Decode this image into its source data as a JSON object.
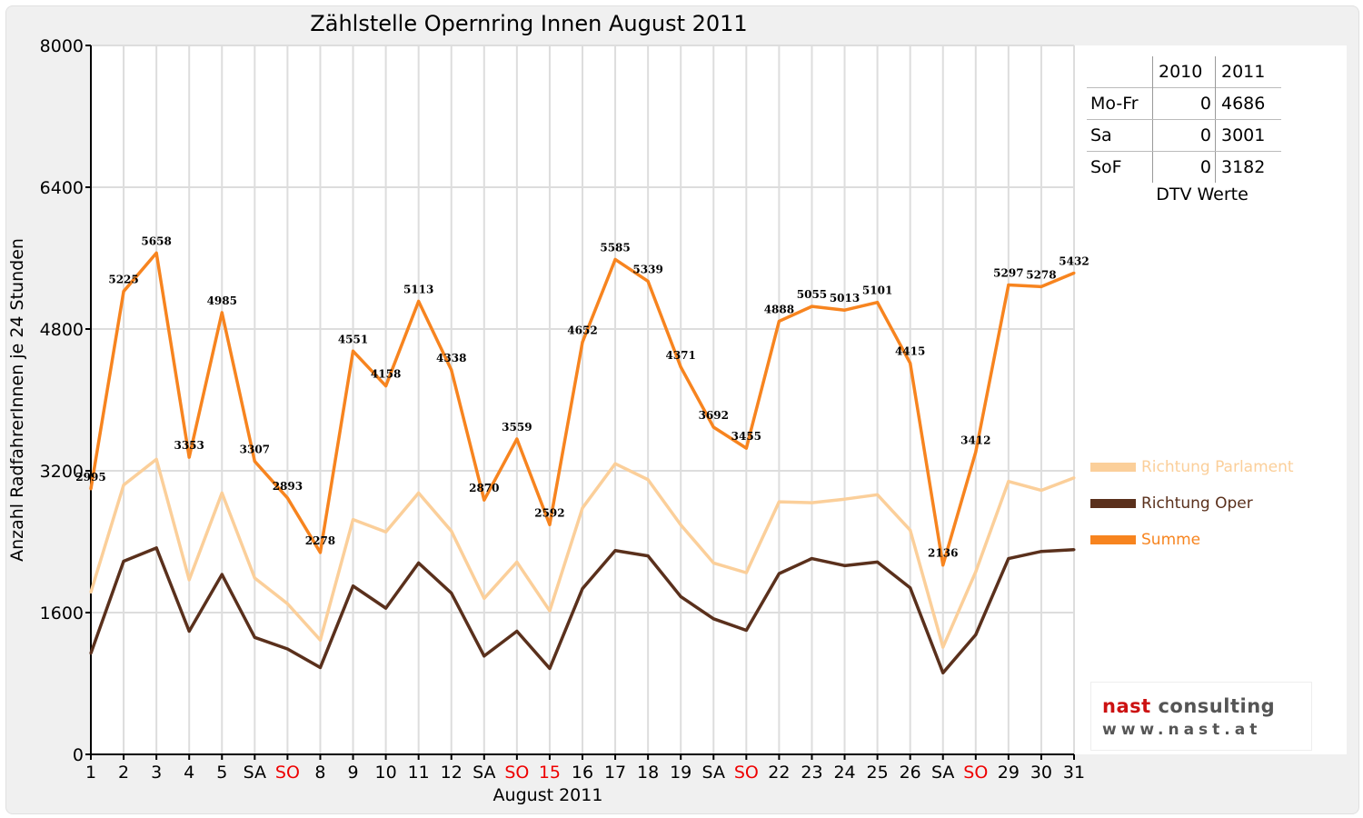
{
  "chart_data": {
    "type": "line",
    "title": "Zählstelle Opernring Innen August 2011",
    "xlabel": "August 2011",
    "ylabel": "Anzahl RadfahrerInnen je 24 Stunden",
    "ylim": [
      0,
      8000
    ],
    "yticks": [
      0,
      1600,
      3200,
      4800,
      6400,
      8000
    ],
    "grid": true,
    "legend_position": "right",
    "categories": [
      "1",
      "2",
      "3",
      "4",
      "5",
      "SA",
      "SO",
      "8",
      "9",
      "10",
      "11",
      "12",
      "SA",
      "SO",
      "15",
      "16",
      "17",
      "18",
      "19",
      "SA",
      "SO",
      "22",
      "23",
      "24",
      "25",
      "26",
      "SA",
      "SO",
      "29",
      "30",
      "31"
    ],
    "highlighted_categories": [
      "SO",
      "15"
    ],
    "series": [
      {
        "name": "Richtung Parlament",
        "color": "#fbcf9a",
        "values": [
          1830,
          3040,
          3330,
          1970,
          2950,
          1990,
          1700,
          1290,
          2650,
          2510,
          2950,
          2520,
          1760,
          2170,
          1620,
          2780,
          3280,
          3100,
          2590,
          2160,
          2050,
          2850,
          2840,
          2880,
          2930,
          2530,
          1210,
          2060,
          3080,
          2980,
          3120
        ]
      },
      {
        "name": "Richtung Oper",
        "color": "#5a301c",
        "values": [
          1140,
          2180,
          2330,
          1390,
          2030,
          1320,
          1190,
          980,
          1900,
          1650,
          2160,
          1820,
          1110,
          1390,
          970,
          1870,
          2300,
          2240,
          1780,
          1530,
          1400,
          2040,
          2210,
          2130,
          2170,
          1880,
          920,
          1350,
          2210,
          2290,
          2310
        ]
      },
      {
        "name": "Summe",
        "color": "#f7841f",
        "values": [
          2995,
          5225,
          5658,
          3353,
          4985,
          3307,
          2893,
          2278,
          4551,
          4158,
          5113,
          4338,
          2870,
          3559,
          2592,
          4652,
          5585,
          5339,
          4371,
          3692,
          3455,
          4888,
          5055,
          5013,
          5101,
          4415,
          2136,
          3412,
          5297,
          5278,
          5432
        ]
      }
    ],
    "data_labels_series": "Summe"
  },
  "dtv": {
    "headers": [
      "",
      "2010",
      "2011"
    ],
    "rows": [
      {
        "label": "Mo-Fr",
        "v2010": "0",
        "v2011": "4686"
      },
      {
        "label": "Sa",
        "v2010": "0",
        "v2011": "3001"
      },
      {
        "label": "SoF",
        "v2010": "0",
        "v2011": "3182"
      }
    ],
    "caption": "DTV Werte"
  },
  "logo": {
    "name_part1": "nast",
    "name_part2": "consulting",
    "url": "www.nast.at",
    "colors": {
      "part1": "#cc1111",
      "part2": "#555555"
    }
  }
}
